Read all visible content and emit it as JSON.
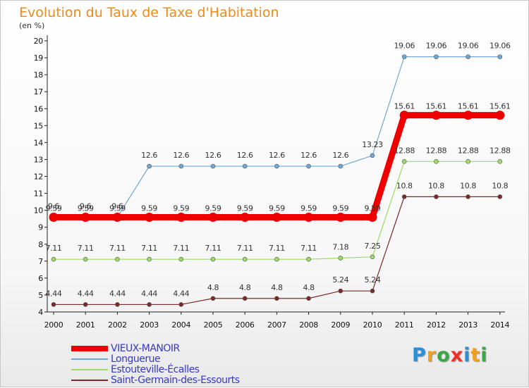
{
  "chart_data": {
    "type": "line",
    "title": "Evolution du Taux de Taxe d'Habitation",
    "subtitle": "(en %)",
    "x": [
      "2000",
      "2001",
      "2002",
      "2003",
      "2004",
      "2005",
      "2006",
      "2007",
      "2008",
      "2009",
      "2010",
      "2011",
      "2012",
      "2013",
      "2014"
    ],
    "ylim": [
      4,
      20
    ],
    "yticks": [
      4,
      5,
      6,
      7,
      8,
      9,
      10,
      11,
      12,
      13,
      14,
      15,
      16,
      17,
      18,
      19,
      20
    ],
    "grid": false,
    "legend_position": "bottom-left",
    "series": [
      {
        "name": "VIEUX-MANOIR",
        "color": "#ee0000",
        "values": [
          9.59,
          9.59,
          9.59,
          9.59,
          9.59,
          9.59,
          9.59,
          9.59,
          9.59,
          9.59,
          9.59,
          15.61,
          15.61,
          15.61,
          15.61
        ],
        "labels": [
          "9.59",
          "9.59",
          "9.59",
          "9.59",
          "9.59",
          "9.59",
          "9.59",
          "9.59",
          "9.59",
          "9.59",
          "9.59",
          "15.61",
          "15.61",
          "15.61",
          "15.61"
        ]
      },
      {
        "name": "Longuerue",
        "color": "#6fa8d6",
        "values": [
          9.6,
          9.6,
          9.6,
          12.6,
          12.6,
          12.6,
          12.6,
          12.6,
          12.6,
          12.6,
          13.23,
          19.06,
          19.06,
          19.06,
          19.06
        ],
        "labels": [
          "9.6",
          "9.6",
          "9.6",
          "12.6",
          "12.6",
          "12.6",
          "12.6",
          "12.6",
          "12.6",
          "12.6",
          "13.23",
          "19.06",
          "19.06",
          "19.06",
          "19.06"
        ]
      },
      {
        "name": "Estouteville-Écalles",
        "color": "#99dd66",
        "values": [
          7.11,
          7.11,
          7.11,
          7.11,
          7.11,
          7.11,
          7.11,
          7.11,
          7.11,
          7.18,
          7.25,
          12.88,
          12.88,
          12.88,
          12.88
        ],
        "labels": [
          "7.11",
          "7.11",
          "7.11",
          "7.11",
          "7.11",
          "7.11",
          "7.11",
          "7.11",
          "7.11",
          "7.18",
          "7.25",
          "12.88",
          "12.88",
          "12.88",
          "12.88"
        ]
      },
      {
        "name": "Saint-Germain-des-Essourts",
        "color": "#7a2a2a",
        "values": [
          4.44,
          4.44,
          4.44,
          4.44,
          4.44,
          4.8,
          4.8,
          4.8,
          4.8,
          5.24,
          5.24,
          10.8,
          10.8,
          10.8,
          10.8
        ],
        "labels": [
          "4.44",
          "4.44",
          "4.44",
          "4.44",
          "4.44",
          "4.8",
          "4.8",
          "4.8",
          "4.8",
          "5.24",
          "5.24",
          "10.8",
          "10.8",
          "10.8",
          "10.8"
        ]
      }
    ]
  },
  "brand": {
    "letters": [
      {
        "ch": "P",
        "color": "#2a8fd8"
      },
      {
        "ch": "r",
        "color": "#f0a020"
      },
      {
        "ch": "o",
        "color": "#3aa845"
      },
      {
        "ch": "x",
        "color": "#e8332a"
      },
      {
        "ch": "i",
        "color": "#2a8fd8"
      },
      {
        "ch": "t",
        "color": "#f0a020"
      },
      {
        "ch": "i",
        "color": "#3aa845"
      }
    ]
  }
}
